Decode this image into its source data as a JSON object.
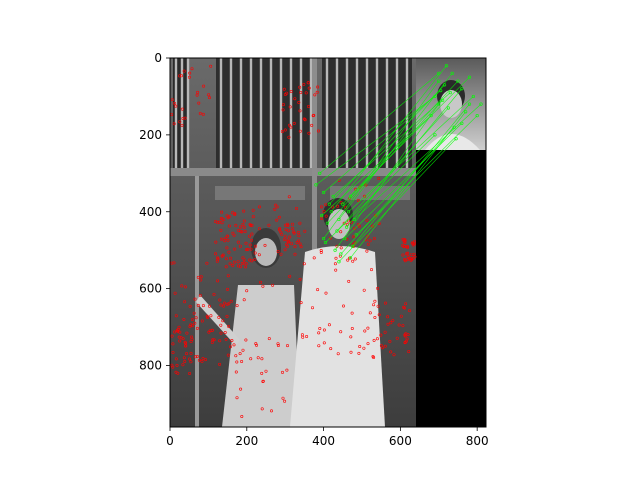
{
  "chart_data": {
    "type": "image",
    "title": "",
    "description_kind": "feature-matching",
    "xlim": [
      0,
      823
    ],
    "ylim": [
      960,
      0
    ],
    "x_ticks": [
      0,
      200,
      400,
      600,
      800
    ],
    "y_ticks": [
      0,
      200,
      400,
      600,
      800
    ],
    "x_tick_labels": [
      "0",
      "200",
      "400",
      "600",
      "800"
    ],
    "y_tick_labels": [
      "0",
      "200",
      "400",
      "600",
      "800"
    ],
    "main_image": {
      "x_range": [
        0,
        640
      ],
      "y_range": [
        0,
        960
      ]
    },
    "inset_image": {
      "x_range": [
        640,
        823
      ],
      "y_range": [
        0,
        240
      ]
    },
    "black_region": {
      "x_range": [
        640,
        823
      ],
      "y_range": [
        240,
        960
      ]
    },
    "keypoint_color": "#ff0000",
    "match_color": "#00ff00",
    "matches": [
      {
        "x1": 420,
        "y1": 400,
        "x2": 720,
        "y2": 20
      },
      {
        "x1": 440,
        "y1": 420,
        "x2": 735,
        "y2": 40
      },
      {
        "x1": 400,
        "y1": 470,
        "x2": 700,
        "y2": 60
      },
      {
        "x1": 460,
        "y1": 440,
        "x2": 760,
        "y2": 80
      },
      {
        "x1": 430,
        "y1": 500,
        "x2": 700,
        "y2": 120
      },
      {
        "x1": 470,
        "y1": 520,
        "x2": 770,
        "y2": 140
      },
      {
        "x1": 380,
        "y1": 330,
        "x2": 690,
        "y2": 100
      },
      {
        "x1": 450,
        "y1": 380,
        "x2": 750,
        "y2": 60
      },
      {
        "x1": 485,
        "y1": 460,
        "x2": 800,
        "y2": 150
      },
      {
        "x1": 410,
        "y1": 430,
        "x2": 710,
        "y2": 110
      },
      {
        "x1": 475,
        "y1": 490,
        "x2": 780,
        "y2": 120
      },
      {
        "x1": 395,
        "y1": 410,
        "x2": 680,
        "y2": 150
      },
      {
        "x1": 445,
        "y1": 510,
        "x2": 740,
        "y2": 180
      },
      {
        "x1": 425,
        "y1": 360,
        "x2": 730,
        "y2": 90
      },
      {
        "x1": 465,
        "y1": 400,
        "x2": 790,
        "y2": 100
      },
      {
        "x1": 405,
        "y1": 480,
        "x2": 690,
        "y2": 200
      },
      {
        "x1": 455,
        "y1": 470,
        "x2": 760,
        "y2": 170
      },
      {
        "x1": 390,
        "y1": 300,
        "x2": 700,
        "y2": 40
      },
      {
        "x1": 480,
        "y1": 420,
        "x2": 810,
        "y2": 120
      },
      {
        "x1": 435,
        "y1": 450,
        "x2": 725,
        "y2": 130
      },
      {
        "x1": 415,
        "y1": 380,
        "x2": 715,
        "y2": 70
      },
      {
        "x1": 470,
        "y1": 360,
        "x2": 780,
        "y2": 50
      },
      {
        "x1": 440,
        "y1": 530,
        "x2": 745,
        "y2": 210
      },
      {
        "x1": 400,
        "y1": 350,
        "x2": 705,
        "y2": 85
      }
    ]
  }
}
